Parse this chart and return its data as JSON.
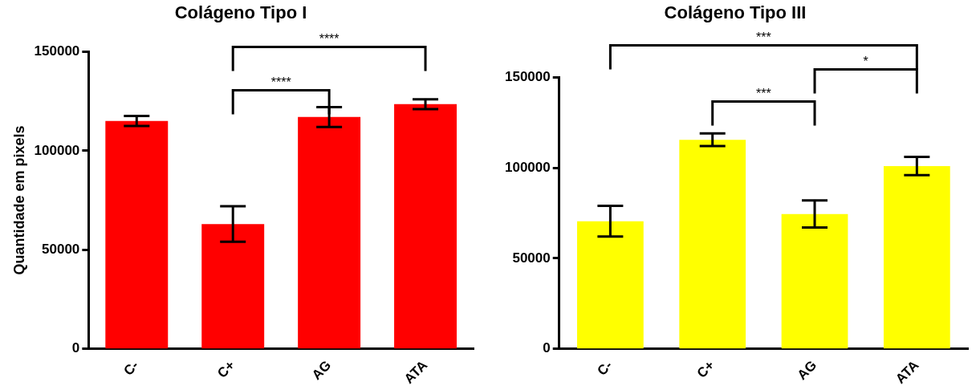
{
  "chart_data": [
    {
      "type": "bar",
      "title": "Colágeno Tipo I",
      "ylabel": "Quantidade em pixels",
      "categories": [
        "C-",
        "C+",
        "AG",
        "ATA"
      ],
      "series": [
        {
          "color": "#ff0000",
          "values": [
            115000,
            63000,
            117000,
            123500
          ],
          "errors": [
            2500,
            9000,
            5000,
            2500
          ]
        }
      ],
      "ylim": [
        0,
        150000
      ],
      "yticks": [
        0,
        50000,
        100000,
        150000
      ],
      "grid": false,
      "legend": false,
      "annotations": [
        "****",
        "****"
      ]
    },
    {
      "type": "bar",
      "title": "Colágeno Tipo III",
      "categories": [
        "C-",
        "C+",
        "AG",
        "ATA"
      ],
      "series": [
        {
          "color": "#ffff00",
          "values": [
            70500,
            115500,
            74500,
            101000
          ],
          "errors": [
            8500,
            3500,
            7500,
            5000
          ]
        }
      ],
      "ylim": [
        0,
        150000
      ],
      "yticks": [
        0,
        50000,
        100000,
        150000
      ],
      "grid": false,
      "legend": false,
      "annotations": [
        "***",
        "*",
        "***"
      ]
    }
  ]
}
